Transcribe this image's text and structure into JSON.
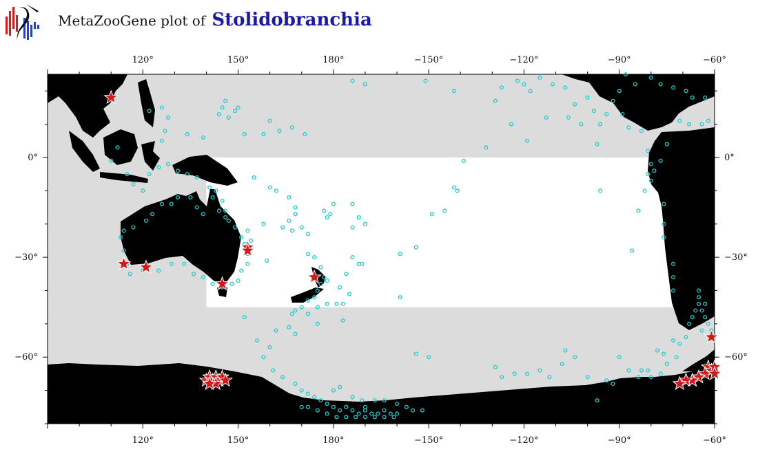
{
  "title": {
    "prefix": "MetaZooGene plot of",
    "taxon": "Stolidobranchia"
  },
  "logo": {
    "icon": "metazoogene-logo-icon",
    "colors": [
      "#e0191b",
      "#1f3fd6",
      "#111111"
    ]
  },
  "map": {
    "projection": "equirectangular, centered on the Pacific",
    "lon_range": [
      90,
      300
    ],
    "lat_range": [
      -80,
      25
    ],
    "lon_ticks": [
      {
        "value": 120,
        "label": "120°"
      },
      {
        "value": 150,
        "label": "150°"
      },
      {
        "value": 180,
        "label": "180°"
      },
      {
        "value": 210,
        "label": "−150°"
      },
      {
        "value": 240,
        "label": "−120°"
      },
      {
        "value": 270,
        "label": "−90°"
      },
      {
        "value": 300,
        "label": "−60°"
      }
    ],
    "lat_ticks": [
      {
        "value": 0,
        "label": "0°"
      },
      {
        "value": -30,
        "label": "−30°"
      },
      {
        "value": -60,
        "label": "−60°"
      }
    ],
    "colors": {
      "ocean_sampled_region": "#dcdcdc",
      "ocean_unsampled_box": "#ffffff",
      "land": "#000000",
      "sample_ring": "#1ccdd0",
      "record_star": "#d31a1a"
    },
    "white_box": {
      "lon": [
        140,
        300
      ],
      "lat": [
        -45,
        0
      ]
    },
    "sample_points": [
      [
        115,
        -5
      ],
      [
        117,
        -8
      ],
      [
        120,
        -10
      ],
      [
        122,
        -5
      ],
      [
        125,
        -3
      ],
      [
        126,
        5
      ],
      [
        127,
        8
      ],
      [
        128,
        12
      ],
      [
        126,
        15
      ],
      [
        122,
        14
      ],
      [
        110,
        -1
      ],
      [
        112,
        3
      ],
      [
        128,
        -2
      ],
      [
        131,
        -4
      ],
      [
        134,
        -5
      ],
      [
        137,
        -6
      ],
      [
        141,
        -9
      ],
      [
        143,
        -10
      ],
      [
        145,
        -13
      ],
      [
        146,
        -16
      ],
      [
        147,
        -19
      ],
      [
        149,
        -21
      ],
      [
        151,
        -24
      ],
      [
        152,
        -26
      ],
      [
        153,
        -29
      ],
      [
        153,
        -32
      ],
      [
        151,
        -34
      ],
      [
        150,
        -37
      ],
      [
        148,
        -38
      ],
      [
        145,
        -39
      ],
      [
        142,
        -38
      ],
      [
        139,
        -36
      ],
      [
        136,
        -35
      ],
      [
        133,
        -32
      ],
      [
        129,
        -32
      ],
      [
        125,
        -34
      ],
      [
        120,
        -34
      ],
      [
        116,
        -35
      ],
      [
        115,
        -32
      ],
      [
        114,
        -28
      ],
      [
        113,
        -24
      ],
      [
        114,
        -22
      ],
      [
        117,
        -21
      ],
      [
        121,
        -19
      ],
      [
        123,
        -17
      ],
      [
        126,
        -14
      ],
      [
        129,
        -14
      ],
      [
        131,
        -12
      ],
      [
        135,
        -12
      ],
      [
        137,
        -15
      ],
      [
        139,
        -17
      ],
      [
        142,
        -12
      ],
      [
        144,
        -16
      ],
      [
        146,
        -18
      ],
      [
        153,
        -22
      ],
      [
        154,
        -25
      ],
      [
        147,
        12
      ],
      [
        149,
        14
      ],
      [
        150,
        15
      ],
      [
        146,
        17
      ],
      [
        139,
        6
      ],
      [
        134,
        7
      ],
      [
        144,
        13
      ],
      [
        145,
        15
      ],
      [
        152,
        7
      ],
      [
        158,
        7
      ],
      [
        160,
        11
      ],
      [
        163,
        8
      ],
      [
        167,
        9
      ],
      [
        171,
        7
      ],
      [
        155,
        -6
      ],
      [
        160,
        -9
      ],
      [
        162,
        -10
      ],
      [
        166,
        -12
      ],
      [
        168,
        -15
      ],
      [
        168,
        -17
      ],
      [
        166,
        -19
      ],
      [
        164,
        -21
      ],
      [
        167,
        -22
      ],
      [
        170,
        -21
      ],
      [
        172,
        -23
      ],
      [
        178,
        -18
      ],
      [
        179,
        -17
      ],
      [
        177,
        -16
      ],
      [
        180,
        -14
      ],
      [
        186,
        -14
      ],
      [
        188,
        -18
      ],
      [
        190,
        -20
      ],
      [
        186,
        -21
      ],
      [
        159,
        -31
      ],
      [
        158,
        -20
      ],
      [
        172,
        -29
      ],
      [
        174,
        -30
      ],
      [
        176,
        -33
      ],
      [
        177,
        -36
      ],
      [
        178,
        -37
      ],
      [
        176,
        -38
      ],
      [
        175,
        -40
      ],
      [
        174,
        -42
      ],
      [
        172,
        -43
      ],
      [
        170,
        -45
      ],
      [
        168,
        -46
      ],
      [
        167,
        -47
      ],
      [
        172,
        -47
      ],
      [
        175,
        -45
      ],
      [
        178,
        -44
      ],
      [
        181,
        -44
      ],
      [
        183,
        -44
      ],
      [
        185,
        -41
      ],
      [
        182,
        -39
      ],
      [
        184,
        -35
      ],
      [
        188,
        -32
      ],
      [
        189,
        -32
      ],
      [
        186,
        -30
      ],
      [
        183,
        -49
      ],
      [
        175,
        -50
      ],
      [
        168,
        -53
      ],
      [
        166,
        -51
      ],
      [
        162,
        -52
      ],
      [
        160,
        -57
      ],
      [
        158,
        -60
      ],
      [
        152,
        -48
      ],
      [
        156,
        -55
      ],
      [
        161,
        -64
      ],
      [
        164,
        -66
      ],
      [
        168,
        -68
      ],
      [
        170,
        -70
      ],
      [
        172,
        -71
      ],
      [
        174,
        -72
      ],
      [
        176,
        -73
      ],
      [
        178,
        -74
      ],
      [
        180,
        -75
      ],
      [
        182,
        -76
      ],
      [
        184,
        -75
      ],
      [
        186,
        -76
      ],
      [
        188,
        -77
      ],
      [
        190,
        -76
      ],
      [
        192,
        -77
      ],
      [
        194,
        -77
      ],
      [
        196,
        -76
      ],
      [
        198,
        -77
      ],
      [
        200,
        -77
      ],
      [
        172,
        -75
      ],
      [
        175,
        -76
      ],
      [
        178,
        -77
      ],
      [
        181,
        -78
      ],
      [
        184,
        -78
      ],
      [
        187,
        -78
      ],
      [
        190,
        -78
      ],
      [
        193,
        -78
      ],
      [
        196,
        -78
      ],
      [
        199,
        -78
      ],
      [
        180,
        -70
      ],
      [
        182,
        -69
      ],
      [
        186,
        -72
      ],
      [
        189,
        -73
      ],
      [
        193,
        -73
      ],
      [
        196,
        -73
      ],
      [
        200,
        -74
      ],
      [
        203,
        -75
      ],
      [
        190,
        -75
      ],
      [
        205,
        -76
      ],
      [
        208,
        -76
      ],
      [
        174,
        -72
      ],
      [
        170,
        -75
      ],
      [
        201,
        -29
      ],
      [
        206,
        -27
      ],
      [
        211,
        -17
      ],
      [
        215,
        -16
      ],
      [
        221,
        -1
      ],
      [
        219,
        -10
      ],
      [
        218,
        -9
      ],
      [
        201,
        -42
      ],
      [
        206,
        -59
      ],
      [
        210,
        -60
      ],
      [
        231,
        -63
      ],
      [
        233,
        -66
      ],
      [
        237,
        -65
      ],
      [
        241,
        -65
      ],
      [
        245,
        -64
      ],
      [
        248,
        -66
      ],
      [
        252,
        -62
      ],
      [
        256,
        -60
      ],
      [
        253,
        -58
      ],
      [
        260,
        -66
      ],
      [
        263,
        -73
      ],
      [
        266,
        -67
      ],
      [
        268,
        -68
      ],
      [
        270,
        -60
      ],
      [
        273,
        -64
      ],
      [
        276,
        -66
      ],
      [
        277,
        -64
      ],
      [
        279,
        -64
      ],
      [
        280,
        -66
      ],
      [
        283,
        -65
      ],
      [
        285,
        -62
      ],
      [
        288,
        -60
      ],
      [
        282,
        -58
      ],
      [
        284,
        -59
      ],
      [
        287,
        -55
      ],
      [
        289,
        -56
      ],
      [
        291,
        -54
      ],
      [
        292,
        -50
      ],
      [
        293,
        -48
      ],
      [
        294,
        -46
      ],
      [
        295,
        -44
      ],
      [
        296,
        -46
      ],
      [
        297,
        -48
      ],
      [
        298,
        -50
      ],
      [
        299,
        -52
      ],
      [
        296,
        -52
      ],
      [
        297,
        -44
      ],
      [
        295,
        -42
      ],
      [
        295,
        -40
      ],
      [
        287,
        -40
      ],
      [
        287,
        -36
      ],
      [
        287,
        -32
      ],
      [
        284,
        -20
      ],
      [
        284,
        -14
      ],
      [
        280,
        -7
      ],
      [
        279,
        -5
      ],
      [
        280,
        -2
      ],
      [
        279,
        2
      ],
      [
        285,
        4
      ],
      [
        289,
        11
      ],
      [
        292,
        10
      ],
      [
        296,
        10
      ],
      [
        298,
        11
      ],
      [
        297,
        18
      ],
      [
        293,
        18
      ],
      [
        291,
        20
      ],
      [
        287,
        21
      ],
      [
        283,
        22
      ],
      [
        280,
        24
      ],
      [
        275,
        22
      ],
      [
        272,
        25
      ],
      [
        270,
        20
      ],
      [
        268,
        17
      ],
      [
        266,
        13
      ],
      [
        264,
        10
      ],
      [
        262,
        14
      ],
      [
        260,
        18
      ],
      [
        256,
        16
      ],
      [
        254,
        12
      ],
      [
        253,
        21
      ],
      [
        249,
        22
      ],
      [
        245,
        24
      ],
      [
        242,
        20
      ],
      [
        240,
        22
      ],
      [
        238,
        23
      ],
      [
        283,
        -1
      ],
      [
        281,
        -4
      ],
      [
        278,
        -10
      ],
      [
        276,
        -16
      ],
      [
        274,
        -28
      ],
      [
        264,
        -10
      ],
      [
        271,
        13
      ],
      [
        273,
        9
      ],
      [
        277,
        8
      ],
      [
        247,
        12
      ],
      [
        186,
        23
      ],
      [
        190,
        22
      ],
      [
        209,
        23
      ],
      [
        218,
        20
      ],
      [
        231,
        17
      ],
      [
        233,
        21
      ],
      [
        236,
        10
      ],
      [
        241,
        5
      ],
      [
        228,
        3
      ],
      [
        258,
        10
      ],
      [
        263,
        4
      ],
      [
        284,
        -24
      ]
    ],
    "star_points": [
      [
        110,
        18
      ],
      [
        114,
        -32
      ],
      [
        121,
        -33
      ],
      [
        153,
        -27
      ],
      [
        153,
        -28
      ],
      [
        145,
        -38
      ],
      [
        174,
        -36
      ],
      [
        140,
        -67
      ],
      [
        141,
        -66
      ],
      [
        142,
        -67
      ],
      [
        143,
        -66
      ],
      [
        144,
        -67
      ],
      [
        145,
        -66
      ],
      [
        146,
        -67
      ],
      [
        143,
        -68
      ],
      [
        141,
        -68
      ],
      [
        299,
        -54
      ],
      [
        298,
        -63
      ],
      [
        299,
        -64
      ],
      [
        300,
        -63
      ],
      [
        297,
        -65
      ],
      [
        295,
        -66
      ],
      [
        293,
        -67
      ],
      [
        291,
        -67
      ],
      [
        289,
        -68
      ],
      [
        300,
        -65
      ]
    ]
  }
}
